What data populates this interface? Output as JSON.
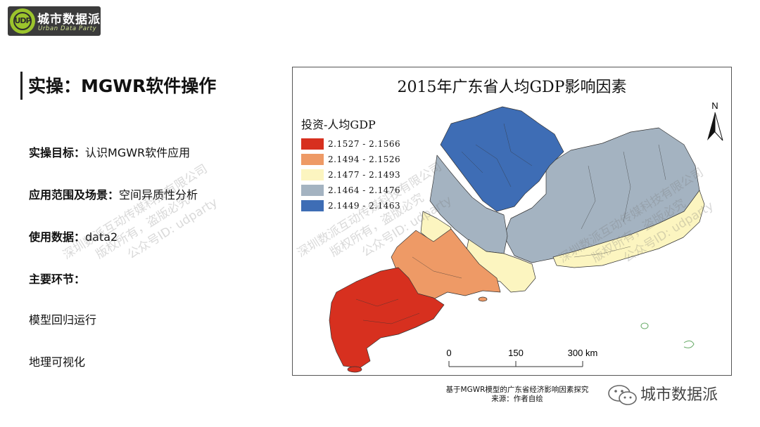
{
  "logo": {
    "name": "城市数据派",
    "en": "Urban Data Party",
    "mark_text": "UDP"
  },
  "heading": {
    "title": "实操：MGWR软件操作"
  },
  "info": {
    "goal_label": "实操目标：",
    "goal_value": "认识MGWR软件应用",
    "scope_label": "应用范围及场景：",
    "scope_value": "空间异质性分析",
    "data_label": "使用数据：",
    "data_value": "data2",
    "steps_label": "主要环节：",
    "step1": "模型回归运行",
    "step2": "地理可视化"
  },
  "watermark": {
    "line1": "深圳数派互动传媒科技有限公司",
    "line2": "版权所有，盗版必究",
    "line3": "公众号ID: udparty"
  },
  "map": {
    "title": "2015年广东省人均GDP影响因素",
    "legend_title": "投资-人均GDP",
    "legend": [
      {
        "label": "2.1527 - 2.1566",
        "color": "#d7301f"
      },
      {
        "label": "2.1494 - 2.1526",
        "color": "#ee9a66"
      },
      {
        "label": "2.1477 - 2.1493",
        "color": "#fcf5c0"
      },
      {
        "label": "2.1464 - 2.1476",
        "color": "#a4b3c1"
      },
      {
        "label": "2.1449 - 2.1463",
        "color": "#3e6db5"
      }
    ],
    "north_label": "N",
    "scale": {
      "labels": [
        "0",
        "150",
        "300 km"
      ],
      "max_km": 300
    }
  },
  "caption": {
    "line1": "基于MGWR模型的广东省经济影响因素探究",
    "line2": "来源：作者自绘"
  },
  "wechat": {
    "name": "城市数据派"
  }
}
